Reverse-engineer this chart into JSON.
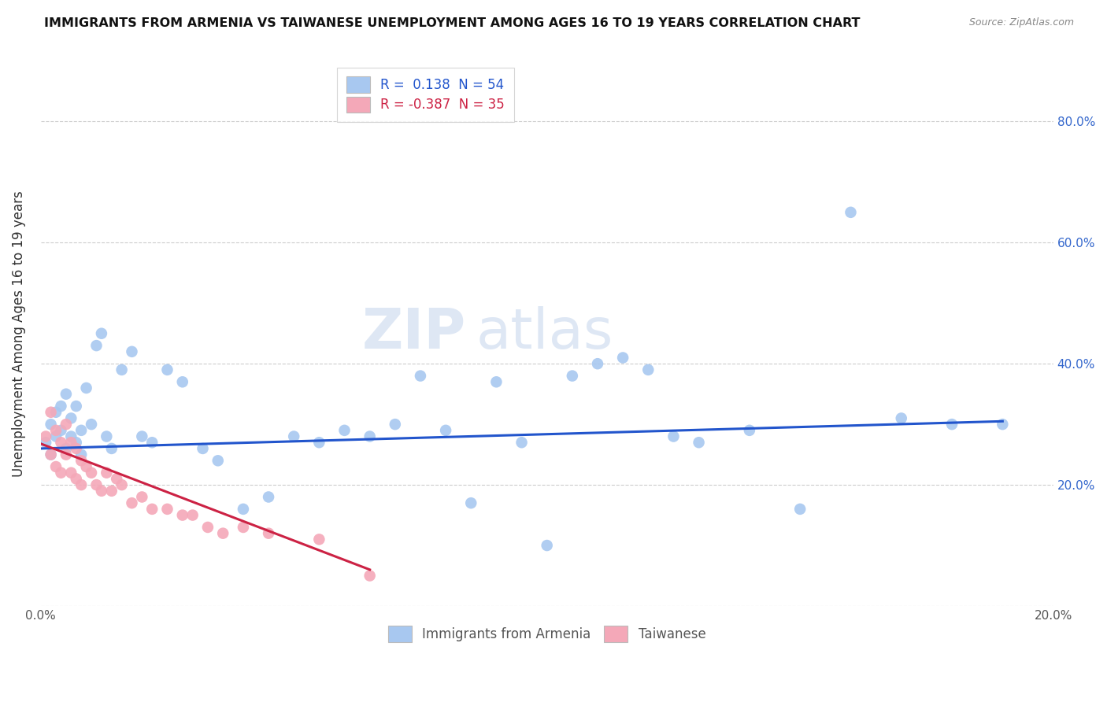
{
  "title": "IMMIGRANTS FROM ARMENIA VS TAIWANESE UNEMPLOYMENT AMONG AGES 16 TO 19 YEARS CORRELATION CHART",
  "source": "Source: ZipAtlas.com",
  "ylabel": "Unemployment Among Ages 16 to 19 years",
  "xlim": [
    0.0,
    0.2
  ],
  "ylim": [
    0.0,
    0.9
  ],
  "xticks": [
    0.0,
    0.05,
    0.1,
    0.15,
    0.2
  ],
  "xticklabels": [
    "0.0%",
    "",
    "",
    "",
    "20.0%"
  ],
  "ytick_positions": [
    0.0,
    0.2,
    0.4,
    0.6,
    0.8
  ],
  "ytick_labels_right": [
    "",
    "20.0%",
    "40.0%",
    "60.0%",
    "80.0%"
  ],
  "legend_r1": "R =  0.138  N = 54",
  "legend_r2": "R = -0.387  N = 35",
  "blue_color": "#a8c8f0",
  "pink_color": "#f4a8b8",
  "blue_line_color": "#2255cc",
  "pink_line_color": "#cc2244",
  "watermark_zip": "ZIP",
  "watermark_atlas": "atlas",
  "blue_scatter_x": [
    0.001,
    0.002,
    0.002,
    0.003,
    0.003,
    0.004,
    0.004,
    0.005,
    0.005,
    0.006,
    0.006,
    0.007,
    0.007,
    0.008,
    0.008,
    0.009,
    0.01,
    0.011,
    0.012,
    0.013,
    0.014,
    0.016,
    0.018,
    0.02,
    0.022,
    0.025,
    0.028,
    0.032,
    0.035,
    0.04,
    0.045,
    0.05,
    0.055,
    0.06,
    0.065,
    0.07,
    0.075,
    0.08,
    0.085,
    0.09,
    0.095,
    0.1,
    0.105,
    0.11,
    0.115,
    0.12,
    0.125,
    0.13,
    0.14,
    0.15,
    0.16,
    0.17,
    0.18,
    0.19
  ],
  "blue_scatter_y": [
    0.27,
    0.3,
    0.25,
    0.32,
    0.28,
    0.29,
    0.33,
    0.26,
    0.35,
    0.28,
    0.31,
    0.27,
    0.33,
    0.25,
    0.29,
    0.36,
    0.3,
    0.43,
    0.45,
    0.28,
    0.26,
    0.39,
    0.42,
    0.28,
    0.27,
    0.39,
    0.37,
    0.26,
    0.24,
    0.16,
    0.18,
    0.28,
    0.27,
    0.29,
    0.28,
    0.3,
    0.38,
    0.29,
    0.17,
    0.37,
    0.27,
    0.1,
    0.38,
    0.4,
    0.41,
    0.39,
    0.28,
    0.27,
    0.29,
    0.16,
    0.65,
    0.31,
    0.3,
    0.3
  ],
  "pink_scatter_x": [
    0.001,
    0.002,
    0.002,
    0.003,
    0.003,
    0.004,
    0.004,
    0.005,
    0.005,
    0.006,
    0.006,
    0.007,
    0.007,
    0.008,
    0.008,
    0.009,
    0.01,
    0.011,
    0.012,
    0.013,
    0.014,
    0.015,
    0.016,
    0.018,
    0.02,
    0.022,
    0.025,
    0.028,
    0.03,
    0.033,
    0.036,
    0.04,
    0.045,
    0.055,
    0.065
  ],
  "pink_scatter_y": [
    0.28,
    0.32,
    0.25,
    0.29,
    0.23,
    0.27,
    0.22,
    0.3,
    0.25,
    0.27,
    0.22,
    0.26,
    0.21,
    0.24,
    0.2,
    0.23,
    0.22,
    0.2,
    0.19,
    0.22,
    0.19,
    0.21,
    0.2,
    0.17,
    0.18,
    0.16,
    0.16,
    0.15,
    0.15,
    0.13,
    0.12,
    0.13,
    0.12,
    0.11,
    0.05
  ],
  "blue_trend_x": [
    0.0,
    0.19
  ],
  "blue_trend_y": [
    0.26,
    0.305
  ],
  "pink_trend_x": [
    0.0,
    0.065
  ],
  "pink_trend_y": [
    0.268,
    0.06
  ]
}
